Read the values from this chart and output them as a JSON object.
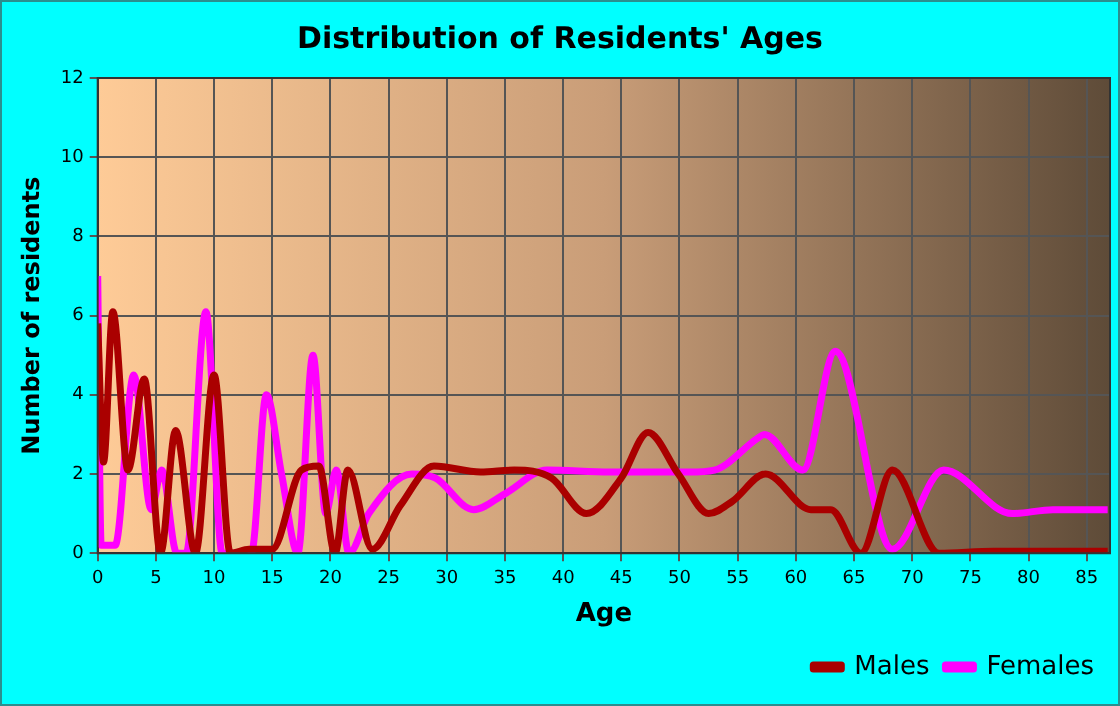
{
  "chart_data": {
    "type": "line",
    "title": "Distribution of Residents' Ages",
    "xlabel": "Age",
    "ylabel": "Number of residents",
    "xlim": [
      0,
      87
    ],
    "xticks": [
      0,
      5,
      10,
      15,
      20,
      25,
      30,
      35,
      40,
      45,
      50,
      55,
      60,
      65,
      70,
      75,
      80,
      85
    ],
    "ylim": [
      0,
      12
    ],
    "yticks": [
      0,
      2,
      4,
      6,
      8,
      10,
      12
    ],
    "grid": true,
    "legend": "bottom right",
    "marker": "none",
    "line_style": "solid",
    "series": [
      {
        "name": "Males",
        "color": "#aa0000",
        "x": [
          0,
          0.5,
          1.3,
          2.6,
          4,
          5.4,
          6.7,
          8.4,
          10,
          11.4,
          13,
          15,
          17.5,
          19,
          20.4,
          21.5,
          23.6,
          26,
          28.9,
          32.9,
          35.8,
          39,
          42,
          45,
          47.3,
          49.9,
          52.5,
          54.5,
          57.4,
          61.3,
          63,
          65.6,
          68.3,
          72.3,
          77,
          86.8
        ],
        "values": [
          5.8,
          2.3,
          6.1,
          2.1,
          4.4,
          0,
          3.1,
          0,
          4.5,
          0,
          0.1,
          0.1,
          2.1,
          2.2,
          0,
          2.1,
          0.1,
          1.2,
          2.2,
          2.05,
          2.1,
          1.9,
          1.0,
          1.9,
          3.05,
          2.0,
          1.0,
          1.3,
          2.0,
          1.1,
          1.1,
          0,
          2.1,
          0,
          0.05,
          0.05
        ]
      },
      {
        "name": "Females",
        "color": "#ff00ff",
        "x": [
          0,
          0.3,
          1.5,
          3.1,
          4.6,
          5.5,
          6.8,
          7.6,
          9.3,
          10.7,
          13.2,
          14.5,
          15.8,
          17.2,
          18.5,
          19.6,
          20.5,
          21.6,
          23.3,
          27,
          29,
          32.3,
          35,
          38.6,
          44,
          50.8,
          53,
          56.7,
          57.3,
          60.6,
          63.4,
          68.3,
          72.7,
          78.6,
          82.1,
          86.8
        ],
        "values": [
          7.0,
          0.2,
          0.2,
          4.5,
          1.1,
          2.1,
          0,
          0,
          6.1,
          0,
          0,
          4.0,
          2.0,
          0,
          5.0,
          1.0,
          2.1,
          0,
          1.0,
          2.0,
          1.9,
          1.1,
          1.5,
          2.1,
          2.05,
          2.05,
          2.1,
          2.9,
          3.0,
          2.1,
          5.1,
          0.1,
          2.1,
          1.0,
          1.1,
          1.1
        ]
      }
    ]
  }
}
